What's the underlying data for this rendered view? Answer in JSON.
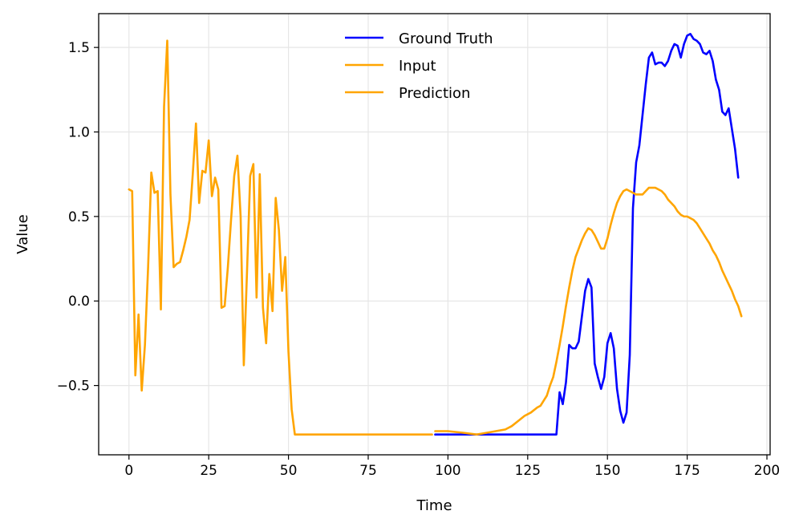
{
  "chart_data": {
    "type": "line",
    "xlabel": "Time",
    "ylabel": "Value",
    "xlim": [
      -9.5,
      201
    ],
    "ylim": [
      -0.91,
      1.7
    ],
    "xticks": [
      0,
      25,
      50,
      75,
      100,
      125,
      150,
      175,
      200
    ],
    "xtick_labels": [
      "0",
      "25",
      "50",
      "75",
      "100",
      "125",
      "150",
      "175",
      "200"
    ],
    "yticks": [
      -0.5,
      0.0,
      0.5,
      1.0,
      1.5
    ],
    "ytick_labels": [
      "−0.5",
      "0.0",
      "0.5",
      "1.0",
      "1.5"
    ],
    "grid": true,
    "legend_position": "top-center",
    "series": [
      {
        "name": "Ground Truth",
        "color": "#0000ff",
        "points": [
          [
            96,
            -0.79
          ],
          [
            134,
            -0.79
          ],
          [
            135,
            -0.54
          ],
          [
            136,
            -0.61
          ],
          [
            137,
            -0.48
          ],
          [
            138,
            -0.26
          ],
          [
            139,
            -0.28
          ],
          [
            140,
            -0.28
          ],
          [
            141,
            -0.24
          ],
          [
            142,
            -0.09
          ],
          [
            143,
            0.06
          ],
          [
            144,
            0.13
          ],
          [
            145,
            0.08
          ],
          [
            146,
            -0.37
          ],
          [
            147,
            -0.45
          ],
          [
            148,
            -0.52
          ],
          [
            149,
            -0.45
          ],
          [
            150,
            -0.25
          ],
          [
            151,
            -0.19
          ],
          [
            152,
            -0.28
          ],
          [
            153,
            -0.52
          ],
          [
            154,
            -0.65
          ],
          [
            155,
            -0.72
          ],
          [
            156,
            -0.66
          ],
          [
            157,
            -0.32
          ],
          [
            158,
            0.55
          ],
          [
            159,
            0.82
          ],
          [
            160,
            0.92
          ],
          [
            161,
            1.1
          ],
          [
            162,
            1.28
          ],
          [
            163,
            1.44
          ],
          [
            164,
            1.47
          ],
          [
            165,
            1.4
          ],
          [
            166,
            1.41
          ],
          [
            167,
            1.41
          ],
          [
            168,
            1.39
          ],
          [
            169,
            1.42
          ],
          [
            170,
            1.48
          ],
          [
            171,
            1.52
          ],
          [
            172,
            1.51
          ],
          [
            173,
            1.44
          ],
          [
            174,
            1.52
          ],
          [
            175,
            1.57
          ],
          [
            176,
            1.58
          ],
          [
            177,
            1.55
          ],
          [
            178,
            1.54
          ],
          [
            179,
            1.52
          ],
          [
            180,
            1.47
          ],
          [
            181,
            1.46
          ],
          [
            182,
            1.48
          ],
          [
            183,
            1.42
          ],
          [
            184,
            1.31
          ],
          [
            185,
            1.25
          ],
          [
            186,
            1.12
          ],
          [
            187,
            1.1
          ],
          [
            188,
            1.14
          ],
          [
            189,
            1.02
          ],
          [
            190,
            0.9
          ],
          [
            191,
            0.73
          ]
        ]
      },
      {
        "name": "Input",
        "color": "#ffa500",
        "points": [
          [
            0,
            0.66
          ],
          [
            1,
            0.65
          ],
          [
            2,
            -0.44
          ],
          [
            3,
            -0.08
          ],
          [
            4,
            -0.53
          ],
          [
            5,
            -0.26
          ],
          [
            6,
            0.2
          ],
          [
            7,
            0.76
          ],
          [
            8,
            0.64
          ],
          [
            9,
            0.65
          ],
          [
            10,
            -0.05
          ],
          [
            11,
            1.15
          ],
          [
            12,
            1.54
          ],
          [
            13,
            0.63
          ],
          [
            14,
            0.2
          ],
          [
            15,
            0.22
          ],
          [
            16,
            0.23
          ],
          [
            17,
            0.3
          ],
          [
            18,
            0.38
          ],
          [
            19,
            0.48
          ],
          [
            20,
            0.75
          ],
          [
            21,
            1.05
          ],
          [
            22,
            0.58
          ],
          [
            23,
            0.77
          ],
          [
            24,
            0.76
          ],
          [
            25,
            0.95
          ],
          [
            26,
            0.62
          ],
          [
            27,
            0.73
          ],
          [
            28,
            0.66
          ],
          [
            29,
            -0.04
          ],
          [
            30,
            -0.03
          ],
          [
            31,
            0.2
          ],
          [
            32,
            0.48
          ],
          [
            33,
            0.74
          ],
          [
            34,
            0.86
          ],
          [
            35,
            0.5
          ],
          [
            36,
            -0.38
          ],
          [
            37,
            0.17
          ],
          [
            38,
            0.74
          ],
          [
            39,
            0.81
          ],
          [
            40,
            0.02
          ],
          [
            41,
            0.75
          ],
          [
            42,
            -0.04
          ],
          [
            43,
            -0.25
          ],
          [
            44,
            0.16
          ],
          [
            45,
            -0.06
          ],
          [
            46,
            0.61
          ],
          [
            47,
            0.42
          ],
          [
            48,
            0.06
          ],
          [
            49,
            0.26
          ],
          [
            50,
            -0.3
          ],
          [
            51,
            -0.64
          ],
          [
            52,
            -0.79
          ],
          [
            95,
            -0.79
          ]
        ]
      },
      {
        "name": "Prediction",
        "color": "#ffa500",
        "points": [
          [
            96,
            -0.77
          ],
          [
            100,
            -0.77
          ],
          [
            105,
            -0.78
          ],
          [
            109,
            -0.79
          ],
          [
            112,
            -0.78
          ],
          [
            115,
            -0.77
          ],
          [
            118,
            -0.76
          ],
          [
            120,
            -0.74
          ],
          [
            122,
            -0.71
          ],
          [
            124,
            -0.68
          ],
          [
            126,
            -0.66
          ],
          [
            128,
            -0.63
          ],
          [
            129,
            -0.62
          ],
          [
            130,
            -0.59
          ],
          [
            131,
            -0.56
          ],
          [
            132,
            -0.5
          ],
          [
            133,
            -0.45
          ],
          [
            134,
            -0.36
          ],
          [
            135,
            -0.26
          ],
          [
            136,
            -0.15
          ],
          [
            137,
            -0.03
          ],
          [
            138,
            0.08
          ],
          [
            139,
            0.18
          ],
          [
            140,
            0.26
          ],
          [
            141,
            0.31
          ],
          [
            142,
            0.36
          ],
          [
            143,
            0.4
          ],
          [
            144,
            0.43
          ],
          [
            145,
            0.42
          ],
          [
            146,
            0.39
          ],
          [
            147,
            0.35
          ],
          [
            148,
            0.31
          ],
          [
            149,
            0.31
          ],
          [
            150,
            0.37
          ],
          [
            151,
            0.45
          ],
          [
            152,
            0.52
          ],
          [
            153,
            0.58
          ],
          [
            154,
            0.62
          ],
          [
            155,
            0.65
          ],
          [
            156,
            0.66
          ],
          [
            157,
            0.65
          ],
          [
            158,
            0.64
          ],
          [
            159,
            0.63
          ],
          [
            160,
            0.63
          ],
          [
            161,
            0.63
          ],
          [
            162,
            0.65
          ],
          [
            163,
            0.67
          ],
          [
            164,
            0.67
          ],
          [
            165,
            0.67
          ],
          [
            166,
            0.66
          ],
          [
            167,
            0.65
          ],
          [
            168,
            0.63
          ],
          [
            169,
            0.6
          ],
          [
            170,
            0.58
          ],
          [
            171,
            0.56
          ],
          [
            172,
            0.53
          ],
          [
            173,
            0.51
          ],
          [
            174,
            0.5
          ],
          [
            175,
            0.5
          ],
          [
            176,
            0.49
          ],
          [
            177,
            0.48
          ],
          [
            178,
            0.46
          ],
          [
            179,
            0.43
          ],
          [
            180,
            0.4
          ],
          [
            181,
            0.37
          ],
          [
            182,
            0.34
          ],
          [
            183,
            0.3
          ],
          [
            184,
            0.27
          ],
          [
            185,
            0.23
          ],
          [
            186,
            0.18
          ],
          [
            187,
            0.14
          ],
          [
            188,
            0.1
          ],
          [
            189,
            0.06
          ],
          [
            190,
            0.01
          ],
          [
            191,
            -0.03
          ],
          [
            192,
            -0.09
          ]
        ]
      }
    ]
  }
}
